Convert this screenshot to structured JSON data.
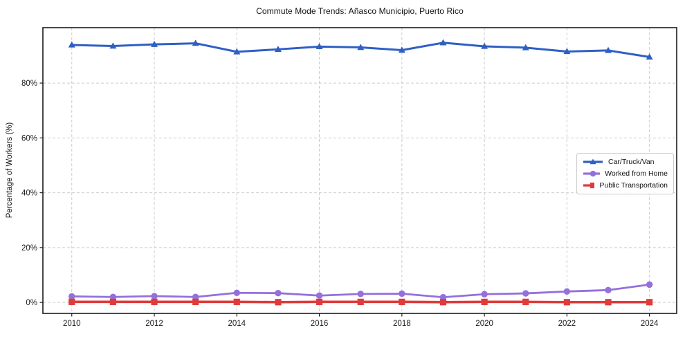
{
  "page": {
    "title": "Commute Mode Trends: Añasco Municipio, Puerto Rico"
  },
  "chart_data": {
    "type": "line",
    "title": "Commute Mode Trends: Añasco Municipio, Puerto Rico",
    "xlabel": "",
    "ylabel": "Percentage of Workers (%)",
    "x": [
      2010,
      2011,
      2012,
      2013,
      2014,
      2015,
      2016,
      2017,
      2018,
      2019,
      2020,
      2021,
      2022,
      2023,
      2024
    ],
    "series": [
      {
        "name": "Car/Truck/Van",
        "color": "#2e5fc4",
        "marker": "triangle",
        "line_width": 3,
        "values": [
          93.9,
          93.5,
          94.1,
          94.5,
          91.4,
          92.3,
          93.3,
          93.0,
          92.0,
          94.7,
          93.4,
          92.9,
          91.5,
          91.9,
          89.5
        ]
      },
      {
        "name": "Worked from Home",
        "color": "#9370db",
        "marker": "circle",
        "line_width": 2.8,
        "values": [
          2.2,
          2.0,
          2.3,
          2.0,
          3.5,
          3.4,
          2.5,
          3.1,
          3.2,
          1.9,
          3.0,
          3.3,
          4.0,
          4.5,
          6.5
        ]
      },
      {
        "name": "Public Transportation",
        "color": "#e03a3a",
        "marker": "square",
        "line_width": 3.6,
        "values": [
          0.2,
          0.2,
          0.2,
          0.2,
          0.2,
          0.1,
          0.2,
          0.2,
          0.2,
          0.1,
          0.2,
          0.2,
          0.1,
          0.1,
          0.1
        ]
      }
    ],
    "xticks": [
      2010,
      2012,
      2014,
      2016,
      2018,
      2020,
      2022,
      2024
    ],
    "ytick_values": [
      0,
      20,
      40,
      60,
      80
    ],
    "ytick_labels": [
      "0%",
      "20%",
      "40%",
      "60%",
      "80%"
    ],
    "xlim": [
      2009.3,
      2024.66
    ],
    "ylim": [
      -4,
      100.2
    ],
    "grid": true,
    "grid_style": "dashed",
    "grid_color": "#cccccc",
    "axis_color": "#1c1c1c",
    "legend_position": "center-right"
  }
}
